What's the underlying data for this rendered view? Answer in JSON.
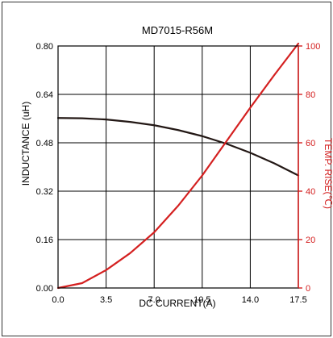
{
  "chart_data": {
    "type": "line",
    "title": "MD7015-R56M",
    "xlabel": "DC CURRENT(A)",
    "ylabel": "INDUCTANCE (uH)",
    "y2label": "TEMP. RISE(℃)",
    "xlim": [
      0,
      17.5
    ],
    "ylim": [
      0,
      0.8
    ],
    "y2lim": [
      0,
      100
    ],
    "xticks": [
      "0.0",
      "3.5",
      "7.0",
      "10.5",
      "14.0",
      "17.5"
    ],
    "yticks": [
      "0.00",
      "0.16",
      "0.32",
      "0.48",
      "0.64",
      "0.80"
    ],
    "y2ticks": [
      "0",
      "20",
      "40",
      "60",
      "80",
      "100"
    ],
    "grid": true,
    "series": [
      {
        "axis": "left",
        "color": "#231815",
        "x": [
          0,
          1.75,
          3.5,
          5.25,
          7.0,
          8.75,
          10.5,
          12.25,
          14.0,
          15.75,
          17.5
        ],
        "y": [
          0.562,
          0.561,
          0.557,
          0.549,
          0.538,
          0.522,
          0.502,
          0.477,
          0.447,
          0.412,
          0.372
        ]
      },
      {
        "axis": "right",
        "color": "#d42020",
        "x": [
          0,
          1.75,
          3.5,
          5.25,
          7.0,
          8.75,
          10.5,
          12.25,
          14.0,
          15.75,
          17.5
        ],
        "y": [
          0,
          2.0,
          7.4,
          14.4,
          23.0,
          34.0,
          46.5,
          60.5,
          74.5,
          88.0,
          101.0
        ]
      }
    ]
  }
}
